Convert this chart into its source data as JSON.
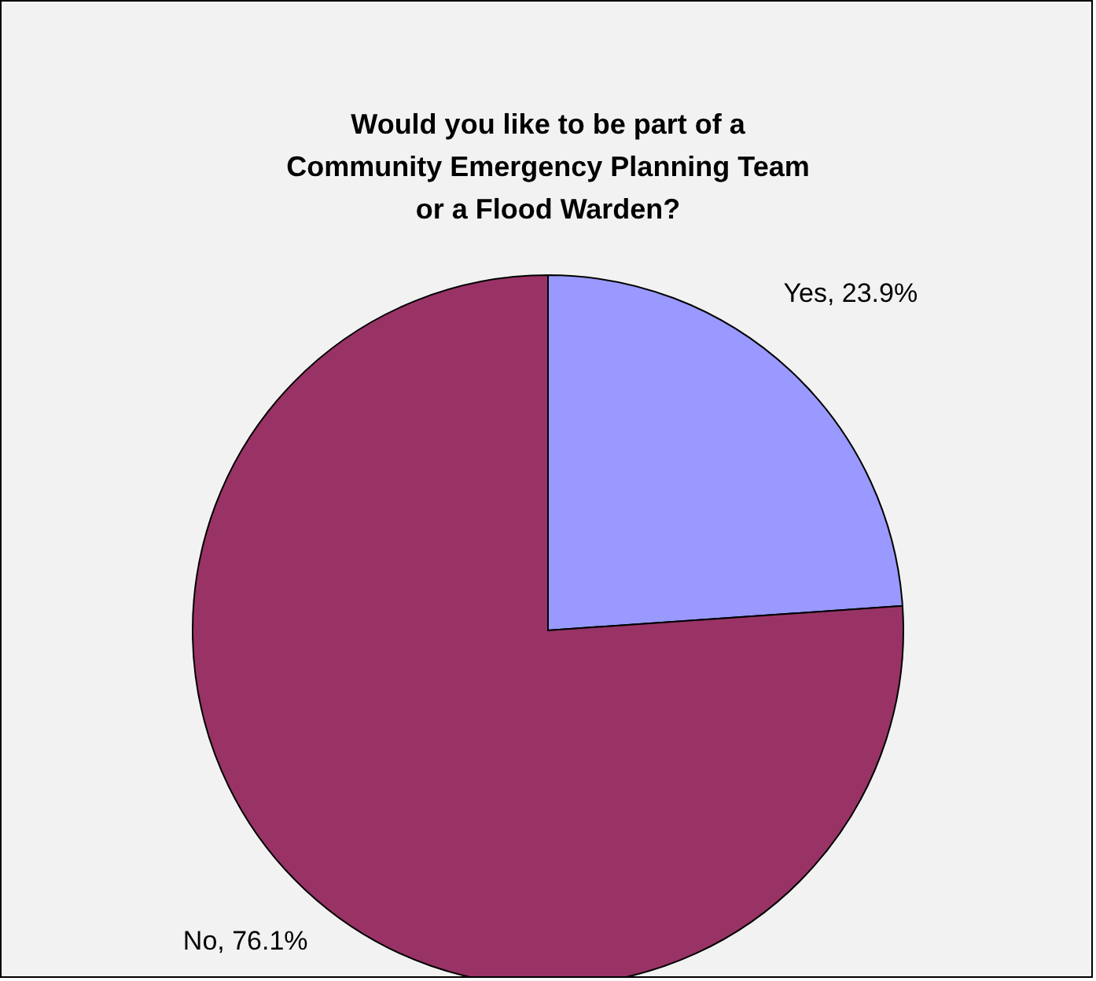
{
  "chart_data": {
    "type": "pie",
    "title": "Would you like to be part of a\nCommunity Emergency Planning Team\nor a Flood Warden?",
    "categories": [
      "Yes",
      "No"
    ],
    "values": [
      23.9,
      76.1
    ],
    "colors": [
      "#9999ff",
      "#993366"
    ],
    "value_labels": [
      "23.9%",
      "76.1%"
    ],
    "legend": false
  }
}
